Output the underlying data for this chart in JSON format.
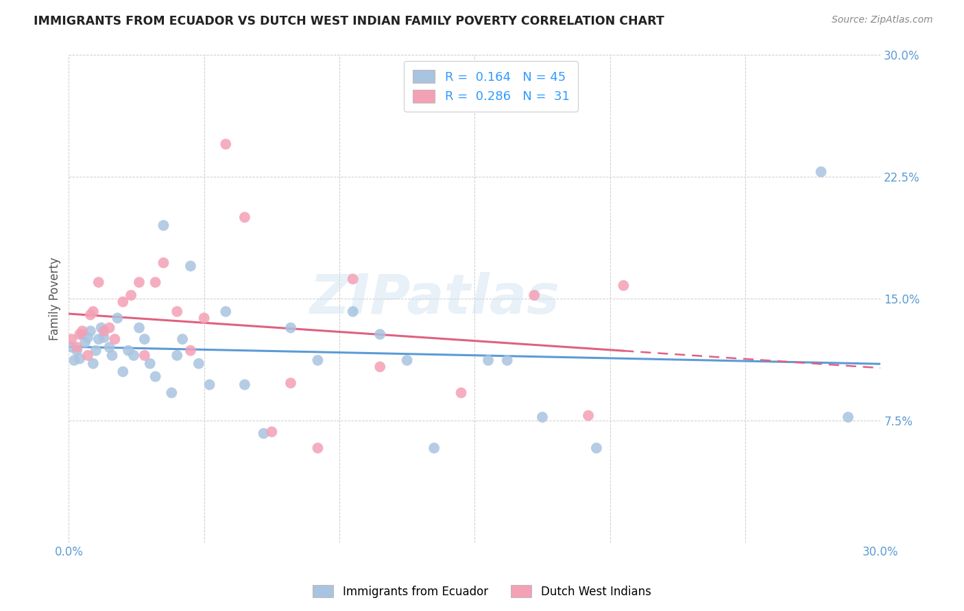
{
  "title": "IMMIGRANTS FROM ECUADOR VS DUTCH WEST INDIAN FAMILY POVERTY CORRELATION CHART",
  "source": "Source: ZipAtlas.com",
  "ylabel": "Family Poverty",
  "xmin": 0.0,
  "xmax": 0.3,
  "ymin": 0.0,
  "ymax": 0.3,
  "yticks": [
    0.0,
    0.075,
    0.15,
    0.225,
    0.3
  ],
  "ytick_labels": [
    "",
    "7.5%",
    "15.0%",
    "22.5%",
    "30.0%"
  ],
  "xticks": [
    0.0,
    0.05,
    0.1,
    0.15,
    0.2,
    0.25,
    0.3
  ],
  "xtick_labels": [
    "0.0%",
    "",
    "",
    "",
    "",
    "",
    "30.0%"
  ],
  "r1": 0.164,
  "n1": 45,
  "r2": 0.286,
  "n2": 31,
  "color_blue": "#a8c4e0",
  "color_pink": "#f4a0b5",
  "line_blue": "#5b9bd5",
  "line_pink": "#e06080",
  "tick_color": "#5b9bd5",
  "legend_text_color": "#3399ff",
  "watermark": "ZIPatlas",
  "ecuador_x": [
    0.001,
    0.002,
    0.003,
    0.004,
    0.005,
    0.006,
    0.007,
    0.008,
    0.009,
    0.01,
    0.011,
    0.012,
    0.013,
    0.015,
    0.016,
    0.018,
    0.02,
    0.022,
    0.024,
    0.026,
    0.028,
    0.03,
    0.032,
    0.035,
    0.038,
    0.04,
    0.042,
    0.045,
    0.048,
    0.052,
    0.058,
    0.065,
    0.072,
    0.082,
    0.092,
    0.105,
    0.115,
    0.125,
    0.135,
    0.155,
    0.162,
    0.175,
    0.195,
    0.278,
    0.288
  ],
  "ecuador_y": [
    0.12,
    0.112,
    0.118,
    0.113,
    0.128,
    0.123,
    0.126,
    0.13,
    0.11,
    0.118,
    0.125,
    0.132,
    0.126,
    0.12,
    0.115,
    0.138,
    0.105,
    0.118,
    0.115,
    0.132,
    0.125,
    0.11,
    0.102,
    0.195,
    0.092,
    0.115,
    0.125,
    0.17,
    0.11,
    0.097,
    0.142,
    0.097,
    0.067,
    0.132,
    0.112,
    0.142,
    0.128,
    0.112,
    0.058,
    0.112,
    0.112,
    0.077,
    0.058,
    0.228,
    0.077
  ],
  "dutch_x": [
    0.001,
    0.003,
    0.004,
    0.005,
    0.007,
    0.008,
    0.009,
    0.011,
    0.013,
    0.015,
    0.017,
    0.02,
    0.023,
    0.026,
    0.028,
    0.032,
    0.035,
    0.04,
    0.045,
    0.05,
    0.058,
    0.065,
    0.075,
    0.082,
    0.092,
    0.105,
    0.115,
    0.145,
    0.172,
    0.192,
    0.205
  ],
  "dutch_y": [
    0.125,
    0.12,
    0.128,
    0.13,
    0.115,
    0.14,
    0.142,
    0.16,
    0.13,
    0.132,
    0.125,
    0.148,
    0.152,
    0.16,
    0.115,
    0.16,
    0.172,
    0.142,
    0.118,
    0.138,
    0.245,
    0.2,
    0.068,
    0.098,
    0.058,
    0.162,
    0.108,
    0.092,
    0.152,
    0.078,
    0.158
  ]
}
